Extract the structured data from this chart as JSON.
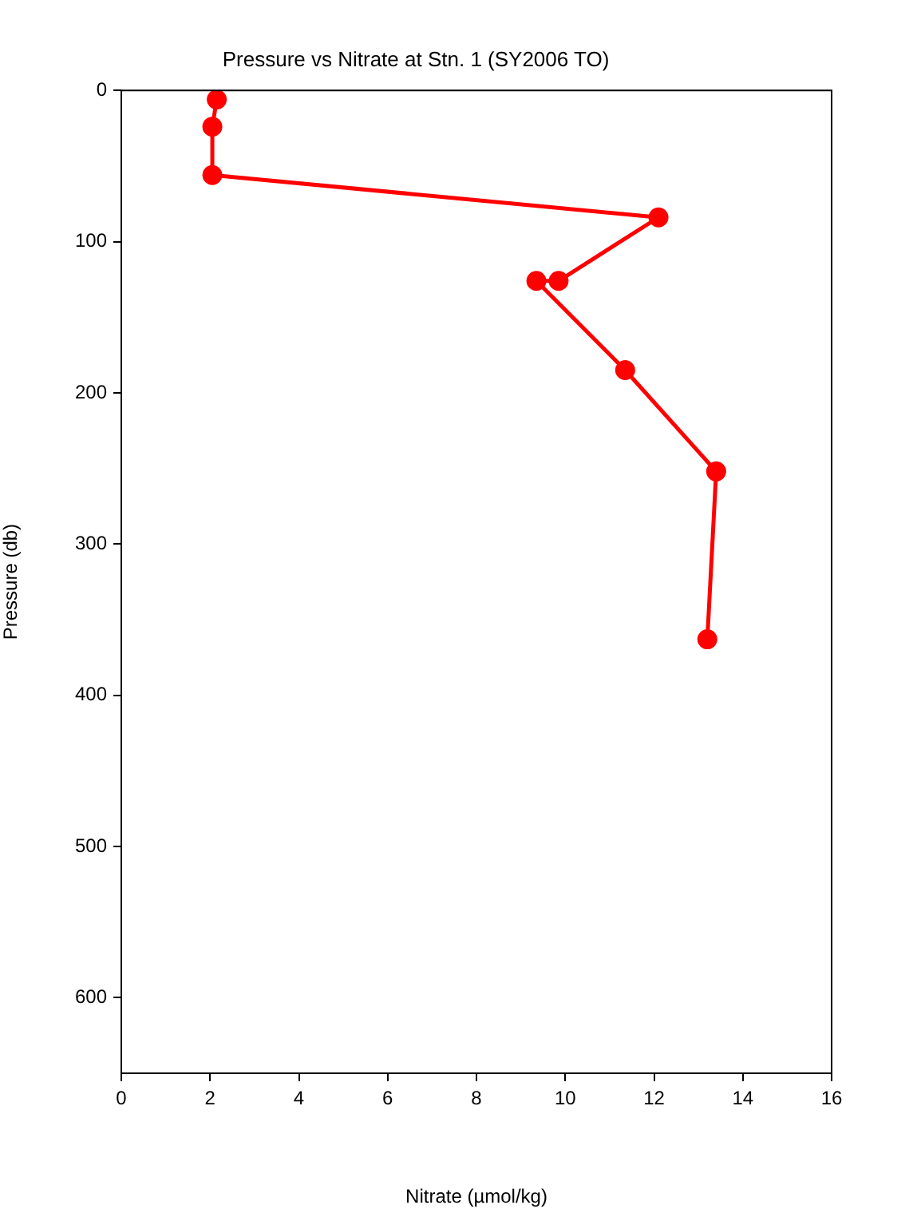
{
  "chart_data": {
    "type": "line",
    "title": "Pressure vs Nitrate at Stn. 1 (SY2006 TO)",
    "xlabel": "Nitrate (µmol/kg)",
    "ylabel": "Pressure (db)",
    "series": [
      {
        "color": "#ff0000",
        "x": [
          2.15,
          2.05,
          2.05,
          12.1,
          9.85,
          9.35,
          11.35,
          13.4,
          13.2
        ],
        "values": [
          6,
          24,
          56,
          84,
          126,
          126,
          185,
          252,
          363
        ]
      }
    ],
    "xlim": [
      0,
      16
    ],
    "xticks": [
      0,
      2,
      4,
      6,
      8,
      10,
      12,
      14,
      16
    ],
    "ylim": [
      650,
      0
    ],
    "yticks": [
      0,
      100,
      200,
      300,
      400,
      500,
      600
    ],
    "grid": false,
    "legend": false,
    "marker": "circle",
    "line_style": "solid"
  }
}
